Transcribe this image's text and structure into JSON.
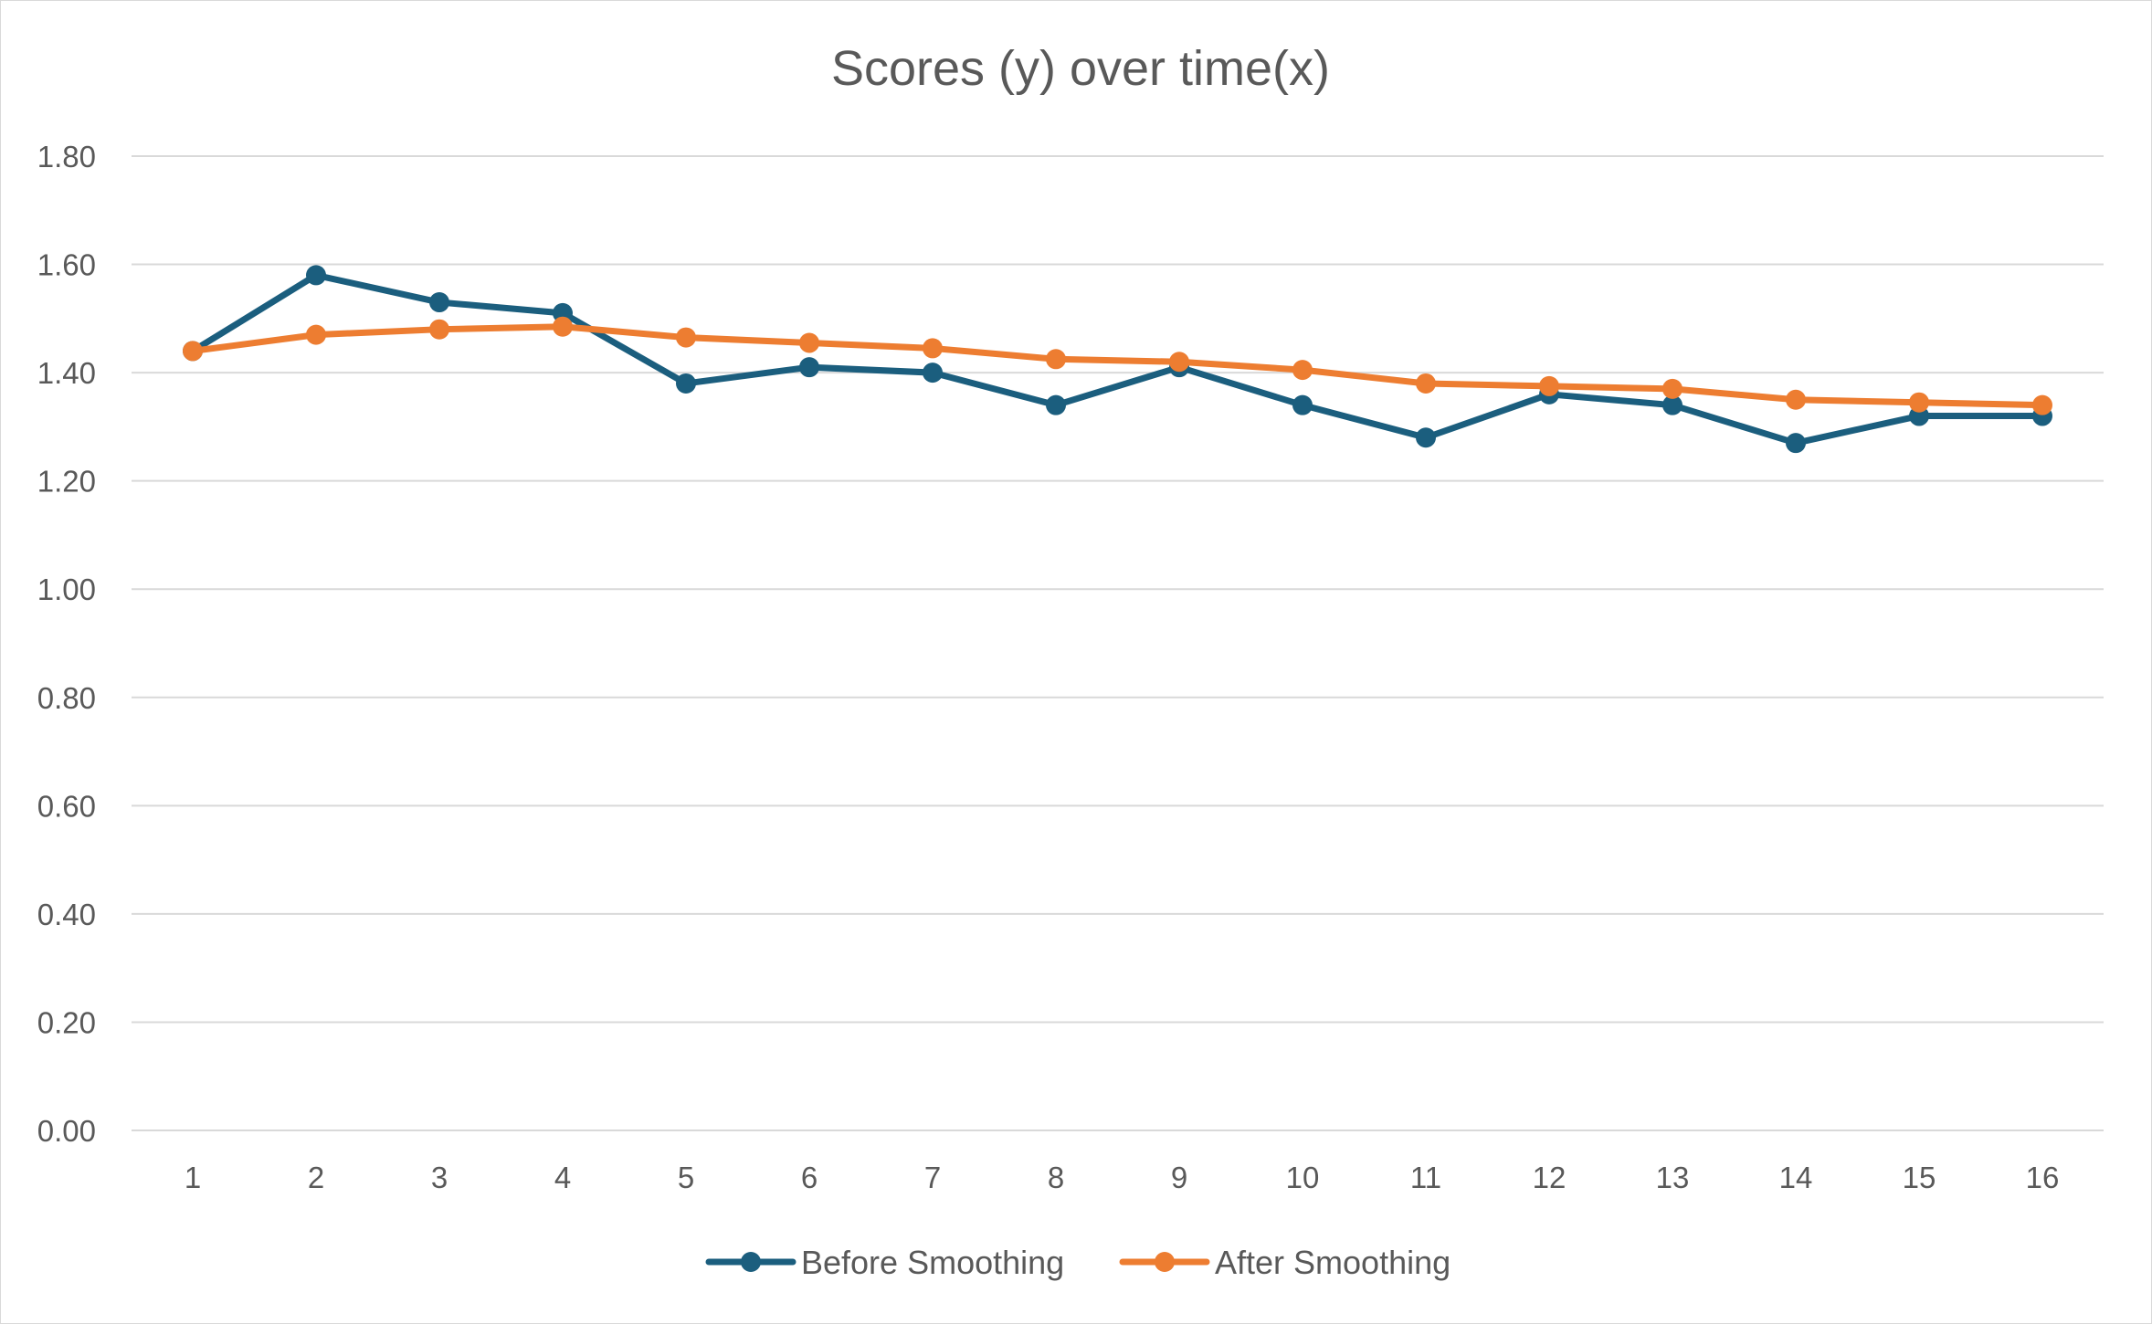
{
  "chart_data": {
    "type": "line",
    "title": "Scores (y) over time(x)",
    "xlabel": "",
    "ylabel": "",
    "categories": [
      "1",
      "2",
      "3",
      "4",
      "5",
      "6",
      "7",
      "8",
      "9",
      "10",
      "11",
      "12",
      "13",
      "14",
      "15",
      "16"
    ],
    "y_ticks": [
      "0.00",
      "0.20",
      "0.40",
      "0.60",
      "0.80",
      "1.00",
      "1.20",
      "1.40",
      "1.60",
      "1.80"
    ],
    "ylim": [
      0,
      1.8
    ],
    "grid": true,
    "legend_position": "bottom",
    "series": [
      {
        "name": "Before Smoothing",
        "color": "#1b5e7e",
        "values": [
          1.44,
          1.58,
          1.53,
          1.51,
          1.38,
          1.41,
          1.4,
          1.34,
          1.41,
          1.34,
          1.28,
          1.36,
          1.34,
          1.27,
          1.32,
          1.32
        ]
      },
      {
        "name": "After Smoothing",
        "color": "#ed7d31",
        "values": [
          1.44,
          1.47,
          1.48,
          1.485,
          1.465,
          1.455,
          1.445,
          1.425,
          1.42,
          1.405,
          1.38,
          1.375,
          1.37,
          1.35,
          1.345,
          1.34
        ]
      }
    ],
    "gridline_color": "#d9d9d9",
    "text_color": "#595959"
  }
}
